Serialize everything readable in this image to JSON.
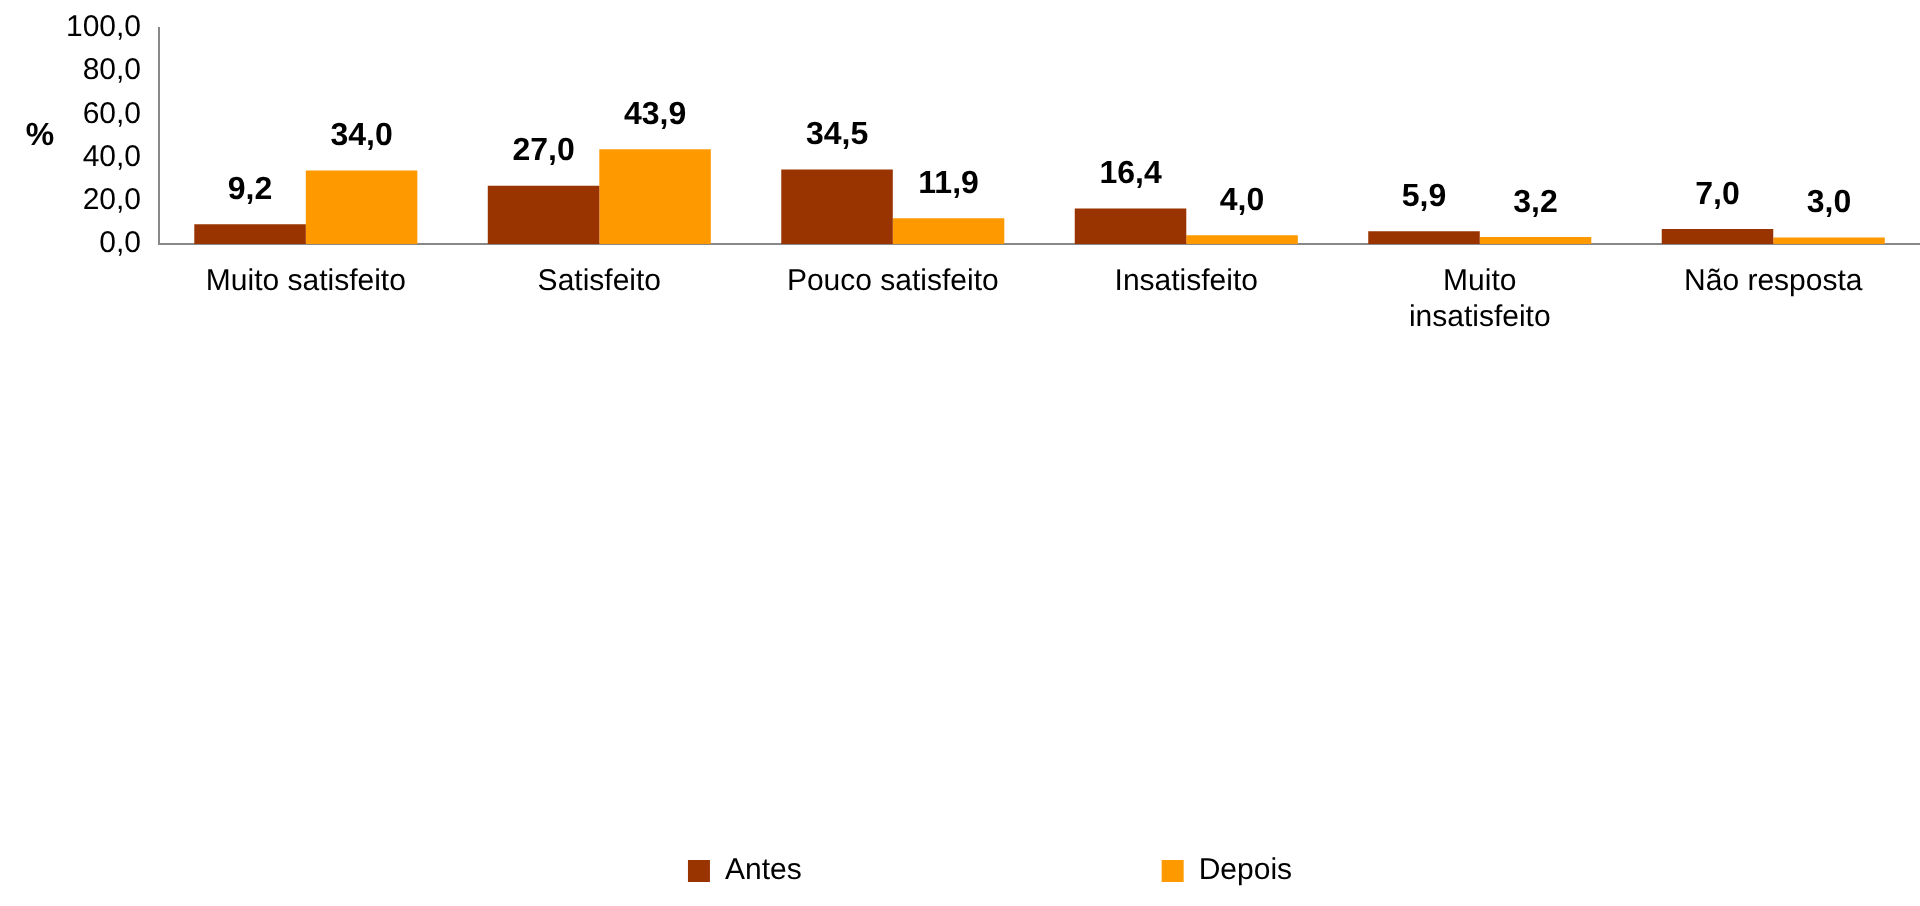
{
  "chart_data": {
    "type": "bar",
    "ylabel": "%",
    "categories": [
      "Muito satisfeito",
      "Satisfeito",
      "Pouco satisfeito",
      "Insatisfeito",
      "Muito insatisfeito",
      "Não resposta"
    ],
    "series": [
      {
        "name": "Antes",
        "color": "#993300",
        "values": [
          9.2,
          27.0,
          34.5,
          16.4,
          5.9,
          7.0
        ],
        "value_labels": [
          "9,2",
          "27,0",
          "34,5",
          "16,4",
          "5,9",
          "7,0"
        ]
      },
      {
        "name": "Depois",
        "color": "#ff9900",
        "values": [
          34.0,
          43.9,
          11.9,
          4.0,
          3.2,
          3.0
        ],
        "value_labels": [
          "34,0",
          "43,9",
          "11,9",
          "4,0",
          "3,2",
          "3,0"
        ]
      }
    ],
    "ylim": [
      0,
      100
    ],
    "yticks": [
      {
        "value": 0,
        "label": "0,0"
      },
      {
        "value": 20,
        "label": "20,0"
      },
      {
        "value": 40,
        "label": "40,0"
      },
      {
        "value": 60,
        "label": "60,0"
      },
      {
        "value": 80,
        "label": "80,0"
      },
      {
        "value": 100,
        "label": "100,0"
      }
    ],
    "grid": false,
    "legend": "bottom"
  }
}
